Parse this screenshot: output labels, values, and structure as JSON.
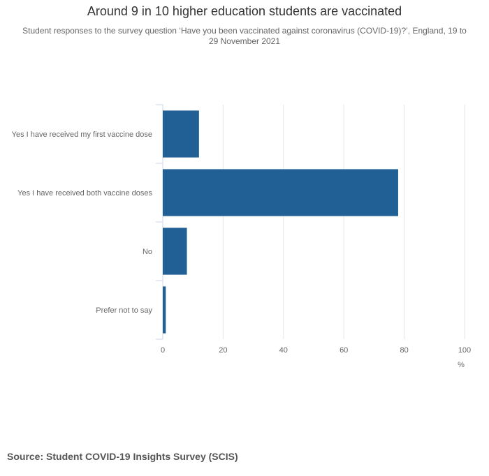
{
  "chart_data": {
    "type": "bar",
    "orientation": "horizontal",
    "title": "Around 9 in 10 higher education students are vaccinated",
    "subtitle": "Student responses to the survey question ‘Have you been vaccinated against coronavirus (COVID-19)?’, England, 19 to 29 November 2021",
    "categories": [
      "Yes I have received my first vaccine dose",
      "Yes I have received both vaccine doses",
      "No",
      "Prefer not to say"
    ],
    "values": [
      12,
      78,
      8,
      1
    ],
    "xlim": [
      0,
      100
    ],
    "xticks": [
      0,
      20,
      40,
      60,
      80,
      100
    ],
    "xlabel": "%",
    "ylabel": "",
    "grid": true,
    "bar_color": "#206095",
    "source": "Source: Student COVID-19 Insights Survey (SCIS)"
  }
}
